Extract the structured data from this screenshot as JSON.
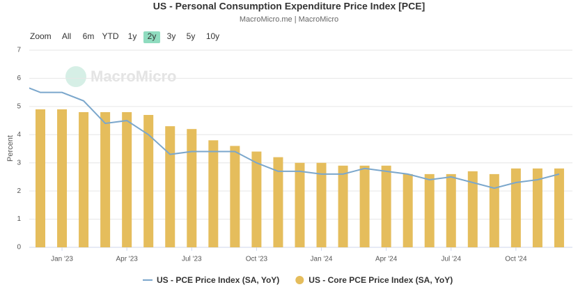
{
  "chart_data": {
    "type": "bar-line",
    "title": "US - Personal Consumption Expenditure Price Index [PCE]",
    "subtitle": "MacroMicro.me | MacroMicro",
    "watermark": "MacroMicro",
    "range_selector": {
      "label": "Zoom",
      "buttons": [
        "All",
        "6m",
        "YTD",
        "1y",
        "2y",
        "3y",
        "5y",
        "10y"
      ],
      "selected": "2y"
    },
    "y_label": "Percent",
    "ylim": [
      0,
      7
    ],
    "yticks": [
      0,
      1,
      2,
      3,
      4,
      5,
      6,
      7
    ],
    "grid": true,
    "categories": [
      null,
      null,
      "Jan '23",
      null,
      null,
      "Apr '23",
      null,
      null,
      "Jul '23",
      null,
      null,
      "Oct '23",
      null,
      null,
      "Jan '24",
      null,
      null,
      "Apr '24",
      null,
      null,
      "Jul '24",
      null,
      null,
      "Oct '24",
      null,
      null
    ],
    "series": [
      {
        "name": "US - PCE Price Index (SA, YoY)",
        "kind": "line",
        "color": "#7ba7cc",
        "values": [
          5.8,
          5.5,
          5.5,
          5.2,
          4.4,
          4.5,
          4.0,
          3.3,
          3.4,
          3.4,
          3.4,
          3.0,
          2.7,
          2.7,
          2.6,
          2.6,
          2.8,
          2.7,
          2.6,
          2.4,
          2.5,
          2.3,
          2.1,
          2.3,
          2.4,
          2.6
        ]
      },
      {
        "name": "US - Core PCE Price Index (SA, YoY)",
        "kind": "bar",
        "color": "#e5bd5c",
        "values": [
          null,
          4.9,
          4.9,
          4.8,
          4.8,
          4.8,
          4.7,
          4.3,
          4.2,
          3.8,
          3.6,
          3.4,
          3.2,
          3.0,
          3.0,
          2.9,
          2.9,
          2.9,
          2.6,
          2.6,
          2.6,
          2.7,
          2.6,
          2.8,
          2.8,
          2.8
        ]
      }
    ]
  }
}
